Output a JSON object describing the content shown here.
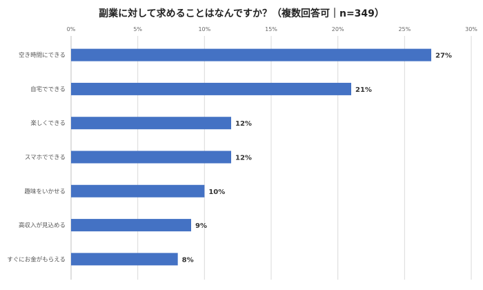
{
  "chart_data": {
    "type": "bar",
    "orientation": "horizontal",
    "title": "副業に対して求めることはなんですか？（複数回答可｜n=349）",
    "categories": [
      "空き時間にできる",
      "自宅でできる",
      "楽しくできる",
      "スマホでできる",
      "趣味をいかせる",
      "高収入が見込める",
      "すぐにお金がもらえる"
    ],
    "values": [
      27,
      21,
      12,
      12,
      10,
      9,
      8
    ],
    "data_labels": [
      "27%",
      "21%",
      "12%",
      "12%",
      "10%",
      "9%",
      "8%"
    ],
    "xlim": [
      0,
      30
    ],
    "xticks": [
      "0%",
      "5%",
      "10%",
      "15%",
      "20%",
      "25%",
      "30%"
    ],
    "xaxis_position": "top",
    "grid": true,
    "bar_color": "#4472C4"
  }
}
